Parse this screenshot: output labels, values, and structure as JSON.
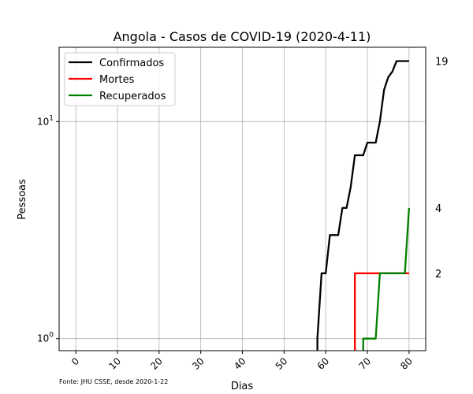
{
  "chart_data": {
    "type": "line",
    "title": "Angola - Casos de COVID-19 (2020-4-11)",
    "xlabel": "Dias",
    "ylabel": "Pessoas",
    "yscale": "log",
    "xlim": [
      -4,
      84
    ],
    "ylim": [
      0.88,
      22
    ],
    "xticks": [
      0,
      10,
      20,
      30,
      40,
      50,
      60,
      70,
      80
    ],
    "yticks": [
      {
        "value": 1,
        "base": "10",
        "exp": "0"
      },
      {
        "value": 10,
        "base": "10",
        "exp": "1"
      }
    ],
    "grid": true,
    "legend_position": "top-left",
    "series": [
      {
        "name": "Confirmados",
        "color": "#000000",
        "points": [
          [
            58,
            0.88
          ],
          [
            58,
            1
          ],
          [
            59,
            2
          ],
          [
            60,
            2
          ],
          [
            61,
            3
          ],
          [
            62,
            3
          ],
          [
            63,
            3
          ],
          [
            64,
            4
          ],
          [
            65,
            4
          ],
          [
            66,
            5
          ],
          [
            67,
            7
          ],
          [
            68,
            7
          ],
          [
            69,
            7
          ],
          [
            70,
            8
          ],
          [
            71,
            8
          ],
          [
            72,
            8
          ],
          [
            73,
            10
          ],
          [
            74,
            14
          ],
          [
            75,
            16
          ],
          [
            76,
            17
          ],
          [
            77,
            19
          ],
          [
            78,
            19
          ],
          [
            79,
            19
          ],
          [
            80,
            19
          ]
        ]
      },
      {
        "name": "Mortes",
        "color": "#ff0000",
        "points": [
          [
            67,
            0.88
          ],
          [
            67,
            2
          ],
          [
            68,
            2
          ],
          [
            69,
            2
          ],
          [
            70,
            2
          ],
          [
            71,
            2
          ],
          [
            72,
            2
          ],
          [
            73,
            2
          ],
          [
            74,
            2
          ],
          [
            75,
            2
          ],
          [
            76,
            2
          ],
          [
            77,
            2
          ],
          [
            78,
            2
          ],
          [
            79,
            2
          ],
          [
            80,
            2
          ]
        ]
      },
      {
        "name": "Recuperados",
        "color": "#008000",
        "points": [
          [
            69,
            0.88
          ],
          [
            69,
            1
          ],
          [
            70,
            1
          ],
          [
            71,
            1
          ],
          [
            72,
            1
          ],
          [
            73,
            2
          ],
          [
            74,
            2
          ],
          [
            75,
            2
          ],
          [
            76,
            2
          ],
          [
            77,
            2
          ],
          [
            78,
            2
          ],
          [
            79,
            2
          ],
          [
            80,
            4
          ]
        ]
      }
    ],
    "side_labels": [
      "19",
      "4",
      "2"
    ],
    "side_label_values": [
      19,
      4,
      2
    ],
    "source": "Fonte: JHU CSSE, desde 2020-1-22"
  }
}
